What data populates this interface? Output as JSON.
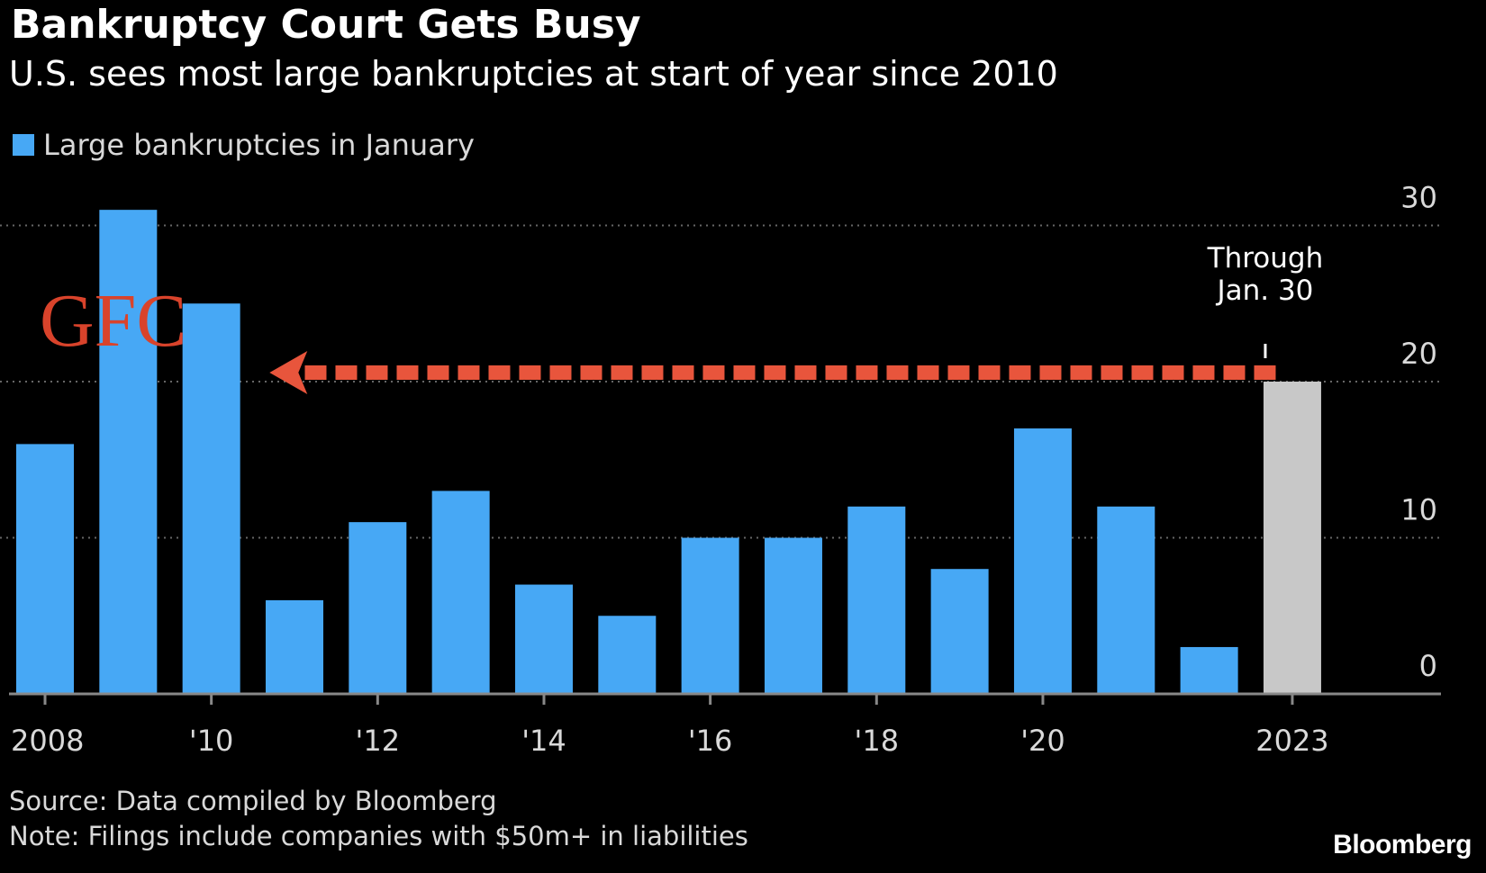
{
  "chart_data": {
    "type": "bar",
    "title": "Bankruptcy Court Gets Busy",
    "subtitle": "U.S. sees most large bankruptcies at start of year since 2010",
    "series": [
      {
        "name": "Large bankruptcies in January",
        "x": [
          2008,
          2009,
          2010,
          2011,
          2012,
          2013,
          2014,
          2015,
          2016,
          2017,
          2018,
          2019,
          2020,
          2021,
          2022,
          2023
        ],
        "values": [
          16,
          31,
          25,
          6,
          11,
          13,
          7,
          5,
          10,
          10,
          12,
          8,
          17,
          12,
          3,
          20
        ]
      }
    ],
    "highlight": {
      "x": 2023,
      "color": "#c8c8c8"
    },
    "colors": {
      "bar": "#47a8f5",
      "highlight_bar": "#c8c8c8",
      "arrow": "#e8553c",
      "gfc_text": "#d9432b",
      "grid": "#666666",
      "axis": "#888888"
    },
    "y_axis": {
      "range": [
        0,
        32
      ],
      "ticks": [
        0,
        10,
        20,
        30
      ],
      "tick_labels": [
        "0",
        "10",
        "20",
        "30"
      ],
      "side": "right"
    },
    "x_axis": {
      "ticks": [
        2008,
        2010,
        2012,
        2014,
        2016,
        2018,
        2020,
        2023
      ],
      "tick_labels": [
        "2008",
        "'10",
        "'12",
        "'14",
        "'16",
        "'18",
        "'20",
        "2023"
      ]
    },
    "grid": "dotted-horizontal",
    "legend_placement": "top-left",
    "annotations": {
      "highlight_label": [
        "Through",
        "Jan. 30"
      ],
      "gfc_label": "GFC",
      "arrow": {
        "from_x": 2022.8,
        "to_x": 2010.7,
        "y": 20,
        "direction": "left"
      }
    },
    "source": "Source: Data compiled by Bloomberg",
    "note": "Note: Filings include companies with $50m+ in liabilities",
    "brand": "Bloomberg"
  }
}
